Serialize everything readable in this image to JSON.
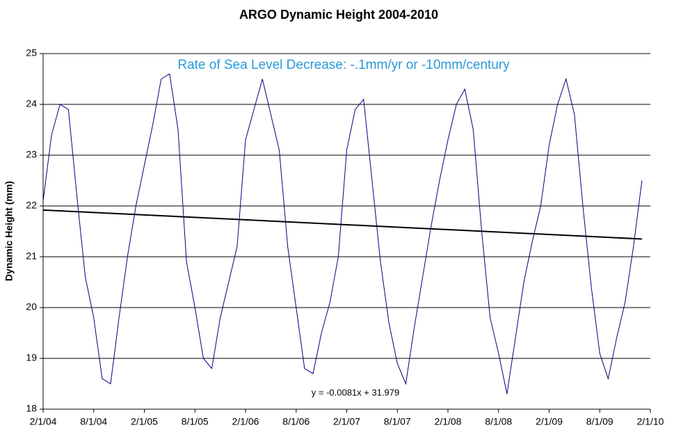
{
  "chart_data": {
    "type": "line",
    "title": "ARGO Dynamic Height 2004-2010",
    "y_label": "Dynamic Height (mm)",
    "annotation": "Rate of Sea Level Decrease: -.1mm/yr or -10mm/century",
    "annotation_color": "#2a9ad8",
    "x": [
      "2/1/04",
      "3/1/04",
      "4/1/04",
      "5/1/04",
      "6/1/04",
      "7/1/04",
      "8/1/04",
      "9/1/04",
      "10/1/04",
      "11/1/04",
      "12/1/04",
      "1/1/05",
      "2/1/05",
      "3/1/05",
      "4/1/05",
      "5/1/05",
      "6/1/05",
      "7/1/05",
      "8/1/05",
      "9/1/05",
      "10/1/05",
      "11/1/05",
      "12/1/05",
      "1/1/06",
      "2/1/06",
      "3/1/06",
      "4/1/06",
      "5/1/06",
      "6/1/06",
      "7/1/06",
      "8/1/06",
      "9/1/06",
      "10/1/06",
      "11/1/06",
      "12/1/06",
      "1/1/07",
      "2/1/07",
      "3/1/07",
      "4/1/07",
      "5/1/07",
      "6/1/07",
      "7/1/07",
      "8/1/07",
      "9/1/07",
      "10/1/07",
      "11/1/07",
      "12/1/07",
      "1/1/08",
      "2/1/08",
      "3/1/08",
      "4/1/08",
      "5/1/08",
      "6/1/08",
      "7/1/08",
      "8/1/08",
      "9/1/08",
      "10/1/08",
      "11/1/08",
      "12/1/08",
      "1/1/09",
      "2/1/09",
      "3/1/09",
      "4/1/09",
      "5/1/09",
      "6/1/09",
      "7/1/09",
      "8/1/09",
      "9/1/09",
      "10/1/09",
      "11/1/09",
      "12/1/09",
      "1/1/10"
    ],
    "series": [
      {
        "name": "Dynamic Height",
        "color": "#000080",
        "values": [
          22.1,
          23.4,
          24.0,
          23.9,
          22.2,
          20.6,
          19.8,
          18.6,
          18.5,
          19.8,
          21.0,
          22.0,
          22.8,
          23.6,
          24.5,
          24.6,
          23.5,
          20.9,
          20.0,
          19.0,
          18.8,
          19.8,
          20.5,
          21.2,
          23.3,
          23.9,
          24.5,
          23.8,
          23.1,
          21.2,
          20.0,
          18.8,
          18.7,
          19.5,
          20.1,
          21.0,
          23.1,
          23.9,
          24.1,
          22.5,
          20.9,
          19.7,
          18.9,
          18.5,
          19.6,
          20.6,
          21.6,
          22.5,
          23.3,
          24.0,
          24.3,
          23.5,
          21.5,
          19.8,
          19.1,
          18.3,
          19.4,
          20.5,
          21.3,
          22.0,
          23.2,
          24.0,
          24.5,
          23.8,
          22.0,
          20.4,
          19.1,
          18.6,
          19.4,
          20.1,
          21.2,
          22.5
        ]
      }
    ],
    "trendline": {
      "equation": "y = -0.0081x + 31.979",
      "start": 21.92,
      "end": 21.35,
      "color": "#000000"
    },
    "xlim": [
      "2/1/04",
      "2/1/10"
    ],
    "xticks": [
      "2/1/04",
      "8/1/04",
      "2/1/05",
      "8/1/05",
      "2/1/06",
      "8/1/06",
      "2/1/07",
      "8/1/07",
      "2/1/08",
      "8/1/08",
      "2/1/09",
      "8/1/09",
      "2/1/10"
    ],
    "ylim": [
      18,
      25
    ],
    "yticks": [
      18,
      19,
      20,
      21,
      22,
      23,
      24,
      25
    ],
    "grid": true
  }
}
